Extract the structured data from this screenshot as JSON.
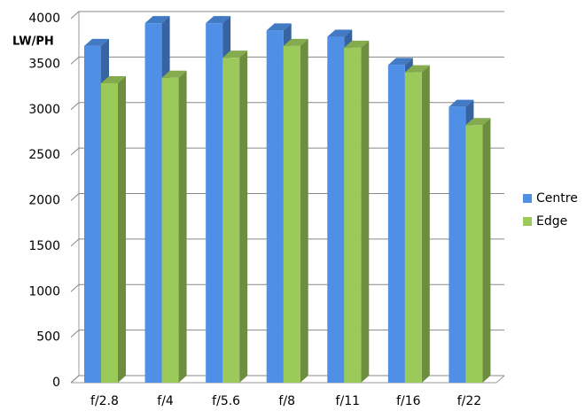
{
  "chart_data": {
    "type": "bar3d",
    "y_axis_label": "LW/PH",
    "categories": [
      "f/2.8",
      "f/4",
      "f/5.6",
      "f/8",
      "f/11",
      "f/16",
      "f/22"
    ],
    "series": [
      {
        "name": "Centre",
        "color": "#4f8fe6",
        "values": [
          3700,
          3950,
          3950,
          3870,
          3800,
          3490,
          3030
        ]
      },
      {
        "name": "Edge",
        "color": "#9bc95a",
        "values": [
          3290,
          3350,
          3570,
          3700,
          3680,
          3410,
          2830
        ]
      }
    ],
    "ylim": [
      0,
      4000
    ],
    "yticks": [
      0,
      500,
      1000,
      1500,
      2000,
      2500,
      3000,
      3500,
      4000
    ],
    "grid": true,
    "legend": "right"
  }
}
